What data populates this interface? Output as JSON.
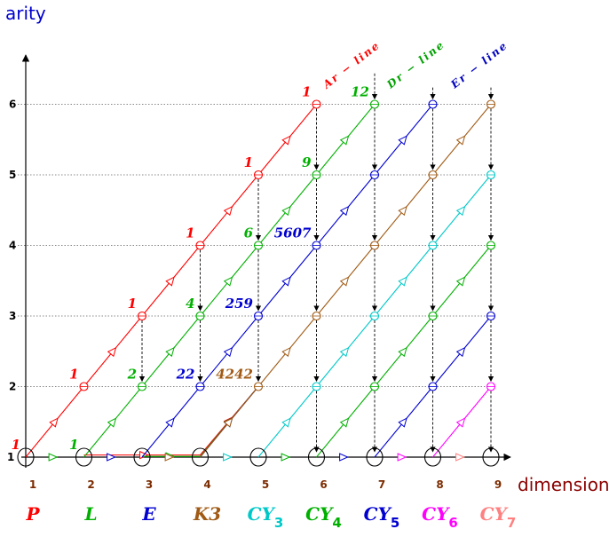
{
  "axes": {
    "y_label": "arity",
    "x_label": "dimension",
    "y_ticks": [
      "1",
      "2",
      "3",
      "4",
      "5",
      "6"
    ],
    "x_ticks": [
      "1",
      "2",
      "3",
      "4",
      "5",
      "6",
      "7",
      "8",
      "9"
    ]
  },
  "families": [
    {
      "label": "P",
      "sub": "",
      "color": "#ff0000"
    },
    {
      "label": "L",
      "sub": "",
      "color": "#00b000"
    },
    {
      "label": "E",
      "sub": "",
      "color": "#0000d0"
    },
    {
      "label": "K3",
      "sub": "",
      "color": "#a05a14"
    },
    {
      "label": "CY",
      "sub": "3",
      "color": "#00c8c8"
    },
    {
      "label": "CY",
      "sub": "4",
      "color": "#00b000"
    },
    {
      "label": "CY",
      "sub": "5",
      "color": "#0000d0"
    },
    {
      "label": "CY",
      "sub": "6",
      "color": "#ff00ff"
    },
    {
      "label": "CY",
      "sub": "7",
      "color": "#ff8080"
    }
  ],
  "line_labels": [
    {
      "text": "Ar − line",
      "color": "#ff0000"
    },
    {
      "text": "Dr − line",
      "color": "#00a000"
    },
    {
      "text": "Er − line",
      "color": "#0000c0"
    }
  ],
  "counts": [
    {
      "text": "1",
      "dim": 1,
      "arity": 1,
      "color": "#ff0000"
    },
    {
      "text": "1",
      "dim": 2,
      "arity": 2,
      "color": "#ff0000"
    },
    {
      "text": "1",
      "dim": 3,
      "arity": 3,
      "color": "#ff0000"
    },
    {
      "text": "1",
      "dim": 4,
      "arity": 4,
      "color": "#ff0000"
    },
    {
      "text": "1",
      "dim": 5,
      "arity": 5,
      "color": "#ff0000"
    },
    {
      "text": "1",
      "dim": 6,
      "arity": 6,
      "color": "#ff0000"
    },
    {
      "text": "1",
      "dim": 2,
      "arity": 1,
      "color": "#00b000"
    },
    {
      "text": "2",
      "dim": 3,
      "arity": 2,
      "color": "#00b000"
    },
    {
      "text": "4",
      "dim": 4,
      "arity": 3,
      "color": "#00b000"
    },
    {
      "text": "6",
      "dim": 5,
      "arity": 4,
      "color": "#00b000"
    },
    {
      "text": "9",
      "dim": 6,
      "arity": 5,
      "color": "#00b000"
    },
    {
      "text": "12",
      "dim": 7,
      "arity": 6,
      "color": "#00b000"
    },
    {
      "text": "22",
      "dim": 4,
      "arity": 2,
      "color": "#0000d0"
    },
    {
      "text": "259",
      "dim": 5,
      "arity": 3,
      "color": "#0000d0"
    },
    {
      "text": "5607",
      "dim": 6,
      "arity": 4,
      "color": "#0000d0"
    },
    {
      "text": "4242",
      "dim": 5,
      "arity": 2,
      "color": "#a05a14"
    }
  ],
  "diagonals": [
    {
      "color": "#ff0000",
      "points": [
        [
          1,
          1
        ],
        [
          2,
          2
        ],
        [
          3,
          3
        ],
        [
          4,
          4
        ],
        [
          5,
          5
        ],
        [
          6,
          6
        ]
      ]
    },
    {
      "color": "#00b000",
      "points": [
        [
          2,
          1
        ],
        [
          3,
          2
        ],
        [
          4,
          3
        ],
        [
          5,
          4
        ],
        [
          6,
          5
        ],
        [
          7,
          6
        ]
      ]
    },
    {
      "color": "#0000d0",
      "points": [
        [
          3,
          1
        ],
        [
          4,
          2
        ],
        [
          5,
          3
        ],
        [
          6,
          4
        ],
        [
          7,
          5
        ],
        [
          8,
          6
        ]
      ]
    },
    {
      "color": "#a05a14",
      "points": [
        [
          4,
          1
        ],
        [
          5,
          2
        ],
        [
          6,
          3
        ],
        [
          7,
          4
        ],
        [
          8,
          5
        ],
        [
          9,
          6
        ]
      ]
    },
    {
      "color": "#00c8c8",
      "points": [
        [
          5,
          1
        ],
        [
          6,
          2
        ],
        [
          7,
          3
        ],
        [
          8,
          4
        ],
        [
          9,
          5
        ]
      ]
    },
    {
      "color": "#00b000",
      "points": [
        [
          6,
          1
        ],
        [
          7,
          2
        ],
        [
          8,
          3
        ],
        [
          9,
          4
        ]
      ]
    },
    {
      "color": "#0000d0",
      "points": [
        [
          7,
          1
        ],
        [
          8,
          2
        ],
        [
          9,
          3
        ]
      ]
    },
    {
      "color": "#ff00ff",
      "points": [
        [
          8,
          1
        ],
        [
          9,
          2
        ]
      ]
    }
  ],
  "connectors": [
    {
      "color": "#ff0000",
      "points": [
        [
          2,
          1.03
        ],
        [
          4,
          1.03
        ],
        [
          5,
          2
        ]
      ]
    },
    {
      "color": "#00b000",
      "points": [
        [
          3,
          1.01
        ],
        [
          4,
          1.01
        ],
        [
          5,
          2
        ]
      ]
    },
    {
      "color": "#0000d0",
      "points": [
        [
          4,
          1.0
        ],
        [
          5,
          2
        ]
      ]
    }
  ],
  "verticals": [
    {
      "dim": 3,
      "from": 3,
      "to": 2
    },
    {
      "dim": 4,
      "from": 4,
      "to": 3
    },
    {
      "dim": 4,
      "from": 3,
      "to": 2
    },
    {
      "dim": 5,
      "from": 5,
      "to": 4
    },
    {
      "dim": 5,
      "from": 4,
      "to": 3
    },
    {
      "dim": 5,
      "from": 3,
      "to": 2
    },
    {
      "dim": 6,
      "from": 6,
      "to": 5
    },
    {
      "dim": 6,
      "from": 5,
      "to": 4
    },
    {
      "dim": 6,
      "from": 4,
      "to": 3
    },
    {
      "dim": 6,
      "from": 3,
      "to": 2
    },
    {
      "dim": 6,
      "from": 2,
      "to": 1
    },
    {
      "dim": 7,
      "from": 6.5,
      "to": 6
    },
    {
      "dim": 7,
      "from": 6,
      "to": 5
    },
    {
      "dim": 7,
      "from": 5,
      "to": 4
    },
    {
      "dim": 7,
      "from": 4,
      "to": 3
    },
    {
      "dim": 7,
      "from": 3,
      "to": 2
    },
    {
      "dim": 7,
      "from": 2,
      "to": 1
    },
    {
      "dim": 8,
      "from": 6.3,
      "to": 6
    },
    {
      "dim": 8,
      "from": 6,
      "to": 5
    },
    {
      "dim": 8,
      "from": 5,
      "to": 4
    },
    {
      "dim": 8,
      "from": 4,
      "to": 3
    },
    {
      "dim": 8,
      "from": 3,
      "to": 2
    },
    {
      "dim": 8,
      "from": 2,
      "to": 1
    },
    {
      "dim": 9,
      "from": 6.3,
      "to": 6
    },
    {
      "dim": 9,
      "from": 6,
      "to": 5
    },
    {
      "dim": 9,
      "from": 5,
      "to": 4
    },
    {
      "dim": 9,
      "from": 4,
      "to": 3
    },
    {
      "dim": 9,
      "from": 3,
      "to": 2
    },
    {
      "dim": 9,
      "from": 2,
      "to": 1
    }
  ],
  "baseline_circles": [
    1,
    2,
    3,
    4,
    5,
    6,
    7,
    8,
    9
  ]
}
